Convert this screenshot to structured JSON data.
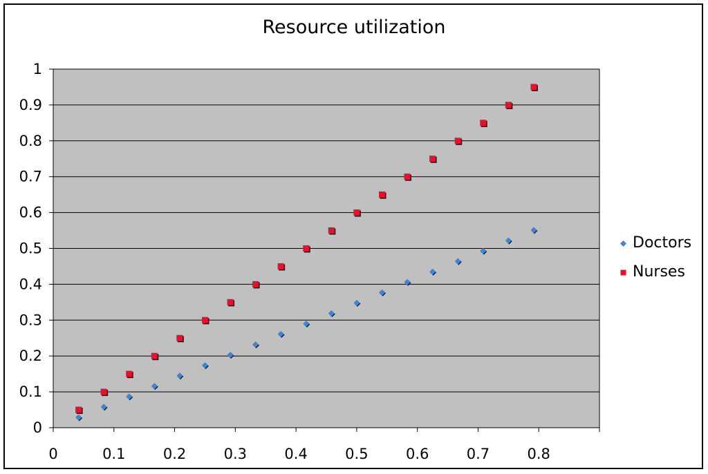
{
  "chart_data": {
    "type": "scatter",
    "title": "Resource utilization",
    "xlabel": "",
    "ylabel": "",
    "xlim": [
      0,
      0.9
    ],
    "ylim": [
      0,
      1
    ],
    "x_ticks": [
      "0",
      "0.1",
      "0.2",
      "0.3",
      "0.4",
      "0.5",
      "0.6",
      "0.7",
      "0.8"
    ],
    "y_ticks": [
      "0",
      "0.1",
      "0.2",
      "0.3",
      "0.4",
      "0.5",
      "0.6",
      "0.7",
      "0.8",
      "0.9",
      "1"
    ],
    "grid": "horizontal",
    "legend_position": "right",
    "plot_background": "#c0c0c0",
    "series": [
      {
        "name": "Doctors",
        "color": "#3d85d8",
        "marker": "diamond",
        "x": [
          0.0417,
          0.0833,
          0.125,
          0.1667,
          0.2083,
          0.25,
          0.2917,
          0.3333,
          0.375,
          0.4167,
          0.4583,
          0.5,
          0.5417,
          0.5833,
          0.625,
          0.6667,
          0.7083,
          0.75,
          0.7917
        ],
        "y": [
          0.029,
          0.058,
          0.087,
          0.116,
          0.145,
          0.174,
          0.203,
          0.232,
          0.261,
          0.29,
          0.319,
          0.348,
          0.377,
          0.406,
          0.435,
          0.464,
          0.493,
          0.522,
          0.551
        ]
      },
      {
        "name": "Nurses",
        "color": "#e8102a",
        "marker": "square",
        "x": [
          0.0417,
          0.0833,
          0.125,
          0.1667,
          0.2083,
          0.25,
          0.2917,
          0.3333,
          0.375,
          0.4167,
          0.4583,
          0.5,
          0.5417,
          0.5833,
          0.625,
          0.6667,
          0.7083,
          0.75,
          0.7917
        ],
        "y": [
          0.05,
          0.1,
          0.15,
          0.2,
          0.25,
          0.3,
          0.35,
          0.4,
          0.45,
          0.5,
          0.55,
          0.6,
          0.65,
          0.7,
          0.75,
          0.8,
          0.85,
          0.9,
          0.95
        ]
      }
    ]
  }
}
